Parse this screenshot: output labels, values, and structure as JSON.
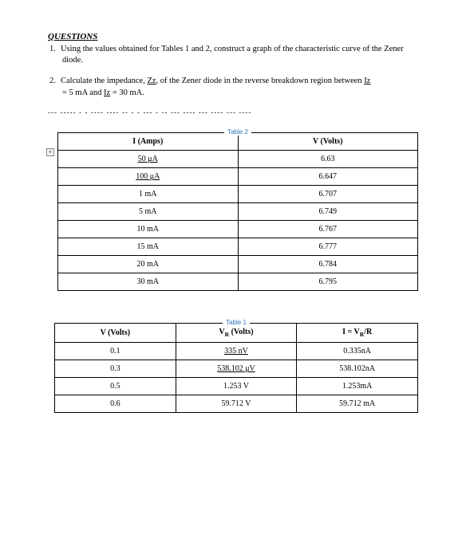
{
  "heading": "QUESTIONS",
  "questions": {
    "q1_num": "1.",
    "q1_text": "Using the values obtained for Tables 1 and 2, construct a graph of the characteristic curve of the Zener diode.",
    "q2_num": "2.",
    "q2_prefix": "Calculate the impedance, ",
    "q2_z": "Zz",
    "q2_mid": ", of the Zener diode in the reverse breakdown region between ",
    "q2_iz": "Iz",
    "q2_line2_a": "= 5 mA and ",
    "q2_iz2": "Iz",
    "q2_line2_b": " = 30 mA."
  },
  "dashed": "--- ----- - - ----  ----  -- -  -  --- - --  --- ----  --- ----  --- ----",
  "table2": {
    "caption": "Table 2",
    "headers": {
      "col1": "I (Amps)",
      "col2": "V (Volts)"
    },
    "rows": [
      {
        "c1": "50 μA",
        "c1_underlined": true,
        "c2": "6.63"
      },
      {
        "c1": "100 μA",
        "c1_underlined": true,
        "c2": "6.647"
      },
      {
        "c1": "1 mA",
        "c1_underlined": false,
        "c2": "6.707"
      },
      {
        "c1": "5 mA",
        "c1_underlined": false,
        "c2": "6.749"
      },
      {
        "c1": "10 mA",
        "c1_underlined": false,
        "c2": "6.767"
      },
      {
        "c1": "15 mA",
        "c1_underlined": false,
        "c2": "6.777"
      },
      {
        "c1": "20 mA",
        "c1_underlined": false,
        "c2": "6.784"
      },
      {
        "c1": "30 mA",
        "c1_underlined": false,
        "c2": "6.795"
      }
    ]
  },
  "table1": {
    "caption": "Table 1",
    "headers": {
      "col1": "V (Volts)",
      "col2_pre": "V",
      "col2_sub": "R",
      "col2_post": " (Volts)",
      "col3_pre": "I = V",
      "col3_sub": "R",
      "col3_post": "/R"
    },
    "rows": [
      {
        "c1": "0.1",
        "c2": "335 nV",
        "c2_underlined": true,
        "c3": "0.335nA"
      },
      {
        "c1": "0.3",
        "c2": "538.102 μV",
        "c2_underlined": true,
        "c3": "538.102nA"
      },
      {
        "c1": "0.5",
        "c2": "1.253 V",
        "c2_underlined": false,
        "c3": "1.253mA"
      },
      {
        "c1": "0.6",
        "c2": "59.712 V",
        "c2_underlined": false,
        "c3": "59.712 mA"
      }
    ]
  },
  "expand_icon": "+"
}
